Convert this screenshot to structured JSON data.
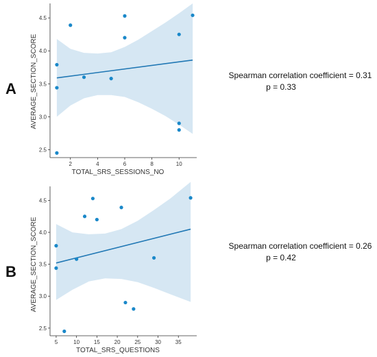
{
  "colors": {
    "point": "#1a88c9",
    "line": "#1f77b4",
    "band": "#cfe3f1"
  },
  "chart_data": [
    {
      "type": "scatter",
      "panel": "A",
      "xlabel": "TOTAL_SRS_SESSIONS_NO",
      "ylabel": "AVERAGE_SECTION_SCORE",
      "xlim": [
        0.5,
        11.3
      ],
      "ylim": [
        2.38,
        4.72
      ],
      "xticks": [
        2,
        4,
        6,
        8,
        10
      ],
      "yticks": [
        2.5,
        3.0,
        3.5,
        4.0,
        4.5
      ],
      "points": [
        {
          "x": 1,
          "y": 3.79
        },
        {
          "x": 1,
          "y": 3.44
        },
        {
          "x": 1,
          "y": 2.45
        },
        {
          "x": 2,
          "y": 4.39
        },
        {
          "x": 3,
          "y": 3.6
        },
        {
          "x": 5,
          "y": 3.58
        },
        {
          "x": 6,
          "y": 4.53
        },
        {
          "x": 6,
          "y": 4.2
        },
        {
          "x": 10,
          "y": 4.25
        },
        {
          "x": 10,
          "y": 2.9
        },
        {
          "x": 10,
          "y": 2.8
        },
        {
          "x": 11,
          "y": 4.54
        }
      ],
      "fit": {
        "x": [
          1,
          11
        ],
        "y": [
          3.59,
          3.86
        ]
      },
      "ci_band": {
        "x": [
          1,
          2,
          3,
          4,
          5,
          6,
          7,
          8,
          9,
          10,
          11
        ],
        "upper": [
          4.18,
          4.03,
          3.97,
          3.96,
          3.98,
          4.06,
          4.17,
          4.3,
          4.43,
          4.57,
          4.72
        ],
        "lower": [
          3.0,
          3.17,
          3.28,
          3.33,
          3.33,
          3.3,
          3.22,
          3.12,
          3.01,
          2.88,
          2.74
        ]
      },
      "annotation": {
        "line1": "Spearman correlation coefficient = 0.31",
        "line2": "p = 0.33"
      }
    },
    {
      "type": "scatter",
      "panel": "B",
      "xlabel": "TOTAL_SRS_QUESTIONS",
      "ylabel": "AVERAGE_SECTION_SCORE",
      "xlim": [
        3.5,
        39.5
      ],
      "ylim": [
        2.38,
        4.72
      ],
      "xticks": [
        5,
        10,
        15,
        20,
        25,
        30,
        35
      ],
      "yticks": [
        2.5,
        3.0,
        3.5,
        4.0,
        4.5
      ],
      "points": [
        {
          "x": 5,
          "y": 3.79
        },
        {
          "x": 5,
          "y": 3.44
        },
        {
          "x": 7,
          "y": 2.45
        },
        {
          "x": 10,
          "y": 3.58
        },
        {
          "x": 12,
          "y": 4.25
        },
        {
          "x": 14,
          "y": 4.53
        },
        {
          "x": 15,
          "y": 4.2
        },
        {
          "x": 21,
          "y": 4.39
        },
        {
          "x": 22,
          "y": 2.9
        },
        {
          "x": 24,
          "y": 2.8
        },
        {
          "x": 29,
          "y": 3.6
        },
        {
          "x": 38,
          "y": 4.54
        }
      ],
      "fit": {
        "x": [
          5,
          38
        ],
        "y": [
          3.52,
          4.05
        ]
      },
      "ci_band": {
        "x": [
          5,
          9,
          13,
          17,
          21,
          25,
          29,
          33,
          38
        ],
        "upper": [
          4.13,
          4.0,
          3.97,
          3.98,
          4.05,
          4.18,
          4.35,
          4.53,
          4.79
        ],
        "lower": [
          2.94,
          3.1,
          3.23,
          3.28,
          3.27,
          3.22,
          3.13,
          3.03,
          2.91
        ]
      },
      "annotation": {
        "line1": "Spearman correlation coefficient = 0.26",
        "line2": "p = 0.42"
      }
    }
  ]
}
